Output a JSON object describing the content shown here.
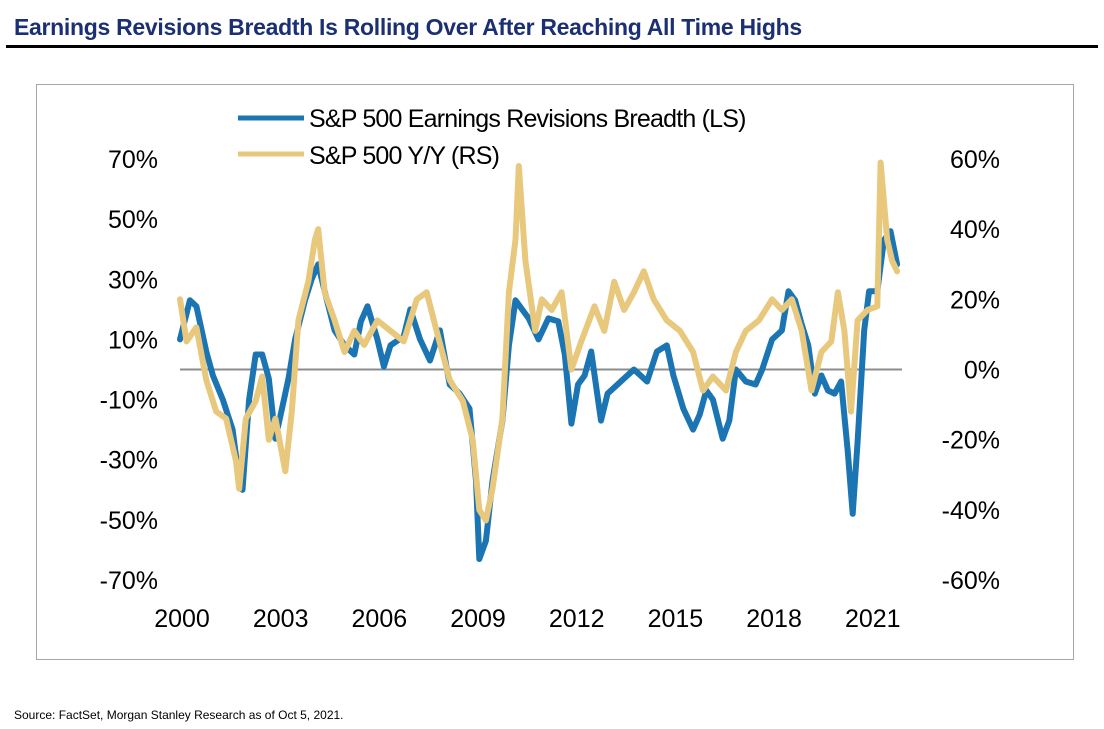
{
  "page": {
    "title": "Earnings Revisions Breadth Is Rolling Over After Reaching All Time Highs",
    "source": "Source: FactSet, Morgan Stanley Research as of Oct 5, 2021."
  },
  "chart_data": {
    "type": "line",
    "title": "Earnings Revisions Breadth Is Rolling Over After Reaching All Time Highs",
    "xlabel": "",
    "ylabel_left": "",
    "ylabel_right": "",
    "x_range": [
      2000.0,
      2021.95
    ],
    "x_ticks": [
      2000,
      2003,
      2006,
      2009,
      2012,
      2015,
      2018,
      2021
    ],
    "x_tick_labels": [
      "2000",
      "2003",
      "2006",
      "2009",
      "2012",
      "2015",
      "2018",
      "2021"
    ],
    "y_left": {
      "range": [
        -70,
        70
      ],
      "ticks": [
        70,
        50,
        30,
        10,
        -10,
        -30,
        -50,
        -70
      ],
      "tick_labels": [
        "70%",
        "50%",
        "30%",
        "10%",
        "-10%",
        "-30%",
        "-50%",
        "-70%"
      ]
    },
    "y_right": {
      "range": [
        -60,
        60
      ],
      "ticks": [
        60,
        40,
        20,
        0,
        -20,
        -40,
        -60
      ],
      "tick_labels": [
        "60%",
        "40%",
        "20%",
        "0%",
        "-20%",
        "-40%",
        "-60%"
      ]
    },
    "zero_line": true,
    "grid": false,
    "legend_position": "top-center",
    "colors": {
      "breadth": "#1b75b3",
      "yoy": "#e8c87d",
      "zero_line": "#8c8c8c",
      "frame": "#a6a6a6",
      "title": "#1b2f73"
    },
    "series": [
      {
        "name": "S&P 500 Earnings Revisions Breadth (LS)",
        "axis": "left",
        "color": "#1b75b3",
        "x": [
          2000.0,
          2000.3,
          2000.5,
          2000.8,
          2001.0,
          2001.3,
          2001.6,
          2001.8,
          2001.9,
          2002.1,
          2002.3,
          2002.5,
          2002.7,
          2002.9,
          2003.1,
          2003.3,
          2003.5,
          2003.8,
          2004.0,
          2004.2,
          2004.4,
          2004.7,
          2005.0,
          2005.3,
          2005.5,
          2005.7,
          2006.0,
          2006.2,
          2006.4,
          2006.8,
          2007.0,
          2007.3,
          2007.6,
          2007.9,
          2008.2,
          2008.5,
          2008.8,
          2009.0,
          2009.1,
          2009.3,
          2009.5,
          2009.8,
          2010.0,
          2010.2,
          2010.4,
          2010.6,
          2010.9,
          2011.2,
          2011.5,
          2011.7,
          2011.9,
          2012.1,
          2012.3,
          2012.5,
          2012.8,
          2013.0,
          2013.4,
          2013.8,
          2014.2,
          2014.5,
          2014.8,
          2015.0,
          2015.3,
          2015.6,
          2015.8,
          2016.0,
          2016.2,
          2016.5,
          2016.7,
          2016.9,
          2017.2,
          2017.5,
          2017.7,
          2018.0,
          2018.3,
          2018.5,
          2018.7,
          2018.9,
          2019.1,
          2019.3,
          2019.5,
          2019.7,
          2019.9,
          2020.1,
          2020.3,
          2020.45,
          2020.6,
          2020.8,
          2020.95,
          2021.2,
          2021.4,
          2021.6,
          2021.8
        ],
        "values": [
          10,
          23,
          21,
          6,
          -2,
          -10,
          -20,
          -37,
          -40,
          -10,
          5,
          5,
          -3,
          -23,
          -13,
          -3,
          10,
          23,
          30,
          35,
          26,
          13,
          8,
          5,
          16,
          21,
          10,
          1,
          8,
          11,
          20,
          10,
          3,
          13,
          -5,
          -8,
          -13,
          -37,
          -63,
          -57,
          -37,
          -17,
          8,
          23,
          20,
          17,
          10,
          17,
          16,
          5,
          -18,
          -5,
          -2,
          6,
          -17,
          -8,
          -4,
          0,
          -4,
          6,
          8,
          -2,
          -13,
          -20,
          -15,
          -7,
          -10,
          -23,
          -17,
          0,
          -4,
          -5,
          0,
          10,
          13,
          26,
          23,
          15,
          8,
          -8,
          -2,
          -7,
          -8,
          -4,
          -27,
          -48,
          -24,
          13,
          26,
          26,
          43,
          46,
          35
        ]
      },
      {
        "name": "S&P 500 Y/Y (RS)",
        "axis": "right",
        "color": "#e8c87d",
        "x": [
          2000.0,
          2000.2,
          2000.5,
          2000.8,
          2001.1,
          2001.4,
          2001.7,
          2001.8,
          2002.0,
          2002.3,
          2002.5,
          2002.7,
          2002.9,
          2003.2,
          2003.4,
          2003.6,
          2003.9,
          2004.1,
          2004.2,
          2004.4,
          2004.7,
          2005.0,
          2005.3,
          2005.6,
          2006.0,
          2006.4,
          2006.8,
          2007.2,
          2007.5,
          2007.8,
          2008.2,
          2008.6,
          2008.9,
          2009.1,
          2009.3,
          2009.5,
          2009.8,
          2010.0,
          2010.2,
          2010.3,
          2010.5,
          2010.8,
          2011.0,
          2011.3,
          2011.6,
          2011.9,
          2012.2,
          2012.6,
          2012.9,
          2013.2,
          2013.5,
          2013.8,
          2014.1,
          2014.4,
          2014.8,
          2015.2,
          2015.6,
          2015.9,
          2016.2,
          2016.6,
          2016.9,
          2017.2,
          2017.6,
          2018.0,
          2018.3,
          2018.6,
          2018.9,
          2019.2,
          2019.5,
          2019.8,
          2020.0,
          2020.2,
          2020.4,
          2020.6,
          2020.9,
          2021.2,
          2021.3,
          2021.5,
          2021.65,
          2021.8
        ],
        "values": [
          20,
          8,
          12,
          -3,
          -12,
          -14,
          -26,
          -34,
          -14,
          -9,
          -2,
          -20,
          -14,
          -29,
          -12,
          14,
          25,
          37,
          40,
          22,
          14,
          5,
          11,
          7,
          14,
          11,
          8,
          20,
          22,
          11,
          -3,
          -9,
          -20,
          -40,
          -43,
          -34,
          -14,
          22,
          37,
          58,
          31,
          11,
          20,
          17,
          22,
          0,
          8,
          18,
          11,
          25,
          17,
          22,
          28,
          20,
          14,
          11,
          5,
          -6,
          -2,
          -6,
          5,
          11,
          14,
          20,
          17,
          20,
          11,
          -6,
          5,
          8,
          22,
          11,
          -12,
          14,
          17,
          18,
          59,
          37,
          31,
          28
        ]
      }
    ]
  }
}
